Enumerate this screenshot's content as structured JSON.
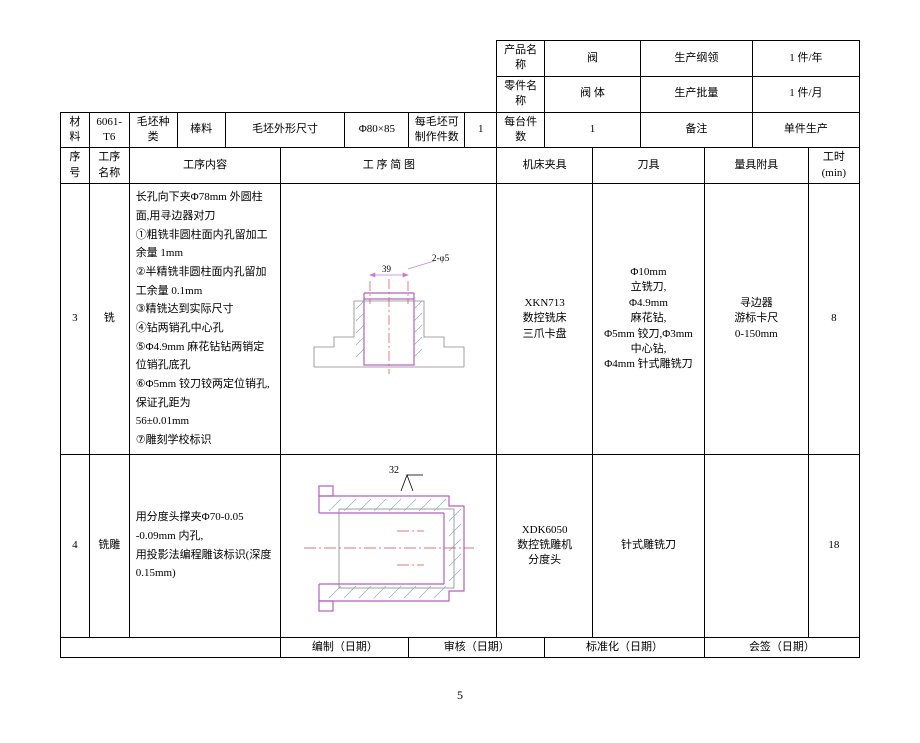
{
  "header": {
    "product_name_label": "产品名称",
    "product_name": "阀",
    "prod_plan_label": "生产纲领",
    "prod_plan_value": "1 件/年",
    "part_name_label": "零件名称",
    "part_name": "阀  体",
    "prod_batch_label": "生产批量",
    "prod_batch_value": "1 件/月",
    "material_label": "材料",
    "material": "6061-T6",
    "blank_type_label": "毛坯种类",
    "blank_type": "棒料",
    "blank_dim_label": "毛坯外形尺寸",
    "blank_dim": "Φ80×85",
    "parts_per_blank_label": "每毛坯可制作件数",
    "parts_per_blank": "1",
    "parts_per_unit_label": "每台件数",
    "parts_per_unit": "1",
    "remark_label": "备注",
    "remark": "单件生产",
    "seq_label": "序号",
    "op_name_label": "工序名称",
    "op_content_label": "工序内容",
    "op_sketch_label": "工  序  简  图",
    "machine_label": "机床夹具",
    "tool_label": "刀具",
    "gauge_label": "量具附具",
    "time_label": "工时(min)"
  },
  "rows": [
    {
      "seq": "3",
      "name": "铣",
      "content": "长孔向下夹Φ78mm 外圆柱面,用寻边器对刀\n①粗铣非圆柱面内孔留加工余量 1mm\n②半精铣非圆柱面内孔留加工余量 0.1mm\n③精铣达到实际尺寸\n④钻两销孔中心孔\n⑤Φ4.9mm 麻花钻钻两销定位销孔底孔\n⑥Φ5mm 铰刀铰两定位销孔,保证孔距为\n56±0.01mm\n⑦雕刻学校标识",
      "machine": "XKN713\n数控铣床\n三爪卡盘",
      "tool": "Φ10mm\n立铣刀,\nΦ4.9mm\n麻花钻,\nΦ5mm 铰刀,Φ3mm\n中心钻,\nΦ4mm 针式雕铣刀",
      "gauge": "寻边器\n游标卡尺\n0-150mm",
      "time": "8"
    },
    {
      "seq": "4",
      "name": "铣雕",
      "content": "用分度头撑夹Φ70-0.05 -0.09mm 内孔,\n用投影法编程雕该标识(深度 0.15mm)",
      "machine": "XDK6050\n数控铣雕机\n分度头",
      "tool": "针式雕铣刀",
      "gauge": "",
      "time": "18"
    }
  ],
  "footer": {
    "compiled": "编制（日期）",
    "checked": "审核（日期）",
    "standardized": "标准化（日期）",
    "signed": "会签（日期）"
  },
  "page_number": "5",
  "drawings": {
    "row3": {
      "stroke_thin": "#888888",
      "stroke_body": "#b45fbf",
      "stroke_center": "#d94a4a",
      "stroke_hatch": "#7aa8d6",
      "stroke_dim": "#c97ed6",
      "label1": "39",
      "label2": "2-φ5"
    },
    "row4": {
      "stroke_body": "#b45fbf",
      "stroke_center": "#d94a4a",
      "stroke_hatch": "#7aa8d6",
      "stroke_gray": "#888888",
      "label": "32"
    }
  }
}
